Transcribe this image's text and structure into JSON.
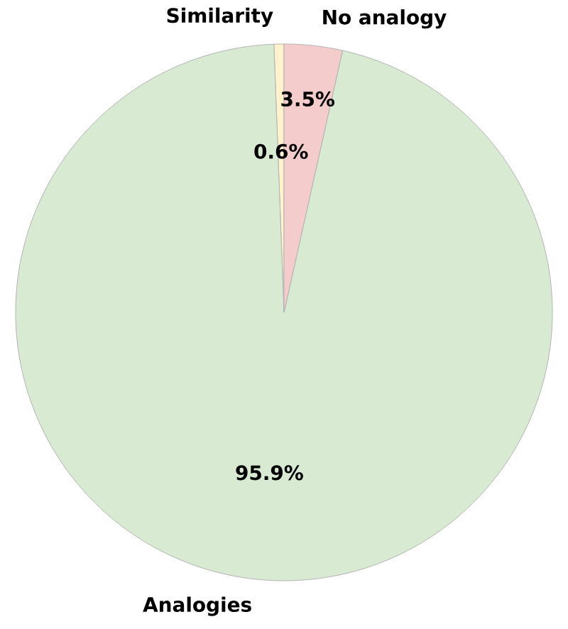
{
  "chart_data": {
    "type": "pie",
    "categories": [
      "Similarity",
      "Analogies",
      "No analogy"
    ],
    "values": [
      0.6,
      95.9,
      3.5
    ],
    "colors": [
      "#fff2cc",
      "#d9ead3",
      "#f4cccc"
    ],
    "value_labels": [
      "0.6%",
      "95.9%",
      "3.5%"
    ]
  }
}
